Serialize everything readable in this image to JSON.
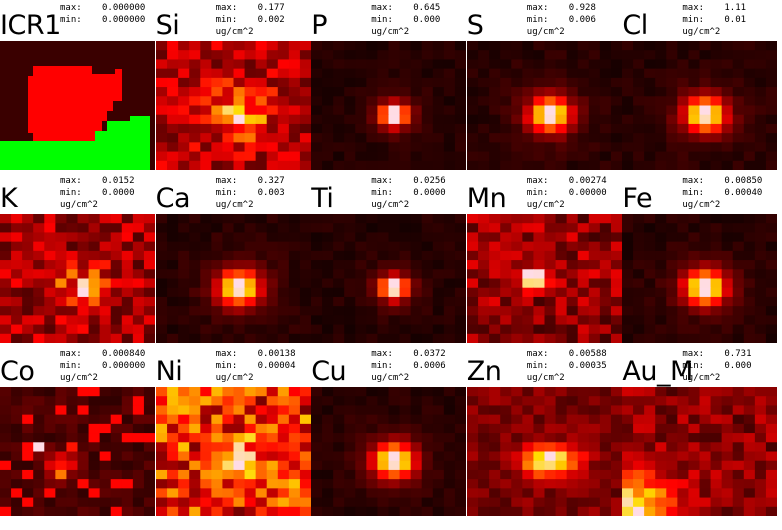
{
  "panels": [
    {
      "element": "ICR1",
      "max": "0.000000",
      "min": "0.000000",
      "unit": "",
      "kind": "roi"
    },
    {
      "element": "Si",
      "max": "0.177",
      "min": "0.002",
      "unit": "ug/cm^2",
      "kind": "map",
      "pattern": "diffuse",
      "seed": 3
    },
    {
      "element": "P",
      "max": "0.645",
      "min": "0.000",
      "unit": "ug/cm^2",
      "kind": "map",
      "pattern": "point",
      "seed": 5
    },
    {
      "element": "S",
      "max": "0.928",
      "min": "0.006",
      "unit": "ug/cm^2",
      "kind": "map",
      "pattern": "blob",
      "seed": 7
    },
    {
      "element": "Cl",
      "max": "1.11",
      "min": "0.01",
      "unit": "ug/cm^2",
      "kind": "map",
      "pattern": "blob",
      "seed": 11
    },
    {
      "element": "K",
      "max": "0.0152",
      "min": "0.0000",
      "unit": "ug/cm^2",
      "kind": "map",
      "pattern": "noisy",
      "seed": 13
    },
    {
      "element": "Ca",
      "max": "0.327",
      "min": "0.003",
      "unit": "ug/cm^2",
      "kind": "map",
      "pattern": "blob",
      "seed": 17
    },
    {
      "element": "Ti",
      "max": "0.0256",
      "min": "0.0000",
      "unit": "ug/cm^2",
      "kind": "map",
      "pattern": "point",
      "seed": 19
    },
    {
      "element": "Mn",
      "max": "0.00274",
      "min": "0.00000",
      "unit": "ug/cm^2",
      "kind": "map",
      "pattern": "offpoint",
      "seed": 23
    },
    {
      "element": "Fe",
      "max": "0.00850",
      "min": "0.00040",
      "unit": "ug/cm^2",
      "kind": "map",
      "pattern": "blob",
      "seed": 29
    },
    {
      "element": "Co",
      "max": "0.000840",
      "min": "0.000000",
      "unit": "ug/cm^2",
      "kind": "map",
      "pattern": "sparse",
      "seed": 31
    },
    {
      "element": "Ni",
      "max": "0.00138",
      "min": "0.00004",
      "unit": "ug/cm^2",
      "kind": "map",
      "pattern": "noisyhigh",
      "seed": 37
    },
    {
      "element": "Cu",
      "max": "0.0372",
      "min": "0.0006",
      "unit": "ug/cm^2",
      "kind": "map",
      "pattern": "blob",
      "seed": 41
    },
    {
      "element": "Zn",
      "max": "0.00588",
      "min": "0.00035",
      "unit": "ug/cm^2",
      "kind": "map",
      "pattern": "wideblob",
      "seed": 43
    },
    {
      "element": "Au_M",
      "max": "0.731",
      "min": "0.000",
      "unit": "ug/cm^2",
      "kind": "map",
      "pattern": "corner",
      "seed": 47
    }
  ],
  "labels": {
    "max": "max:",
    "min": "min:"
  },
  "colors": {
    "roi_background": "#3a0000",
    "roi_region_a": "#ff0000",
    "roi_region_b": "#00ff00"
  }
}
